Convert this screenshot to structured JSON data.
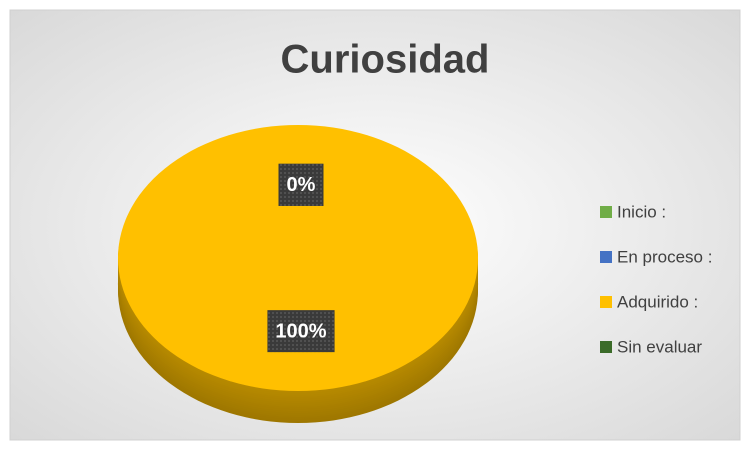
{
  "chart_data": {
    "type": "pie",
    "title": "Curiosidad",
    "categories": [
      "Inicio :",
      "En proceso :",
      "Adquirido :",
      "Sin evaluar"
    ],
    "values": [
      0,
      0,
      100,
      0
    ],
    "value_labels": [
      "0%",
      "0%",
      "100%",
      "0%"
    ],
    "colors": [
      "#70ad47",
      "#4472c4",
      "#ffc000",
      "#3b6b29"
    ],
    "legend": "right"
  }
}
